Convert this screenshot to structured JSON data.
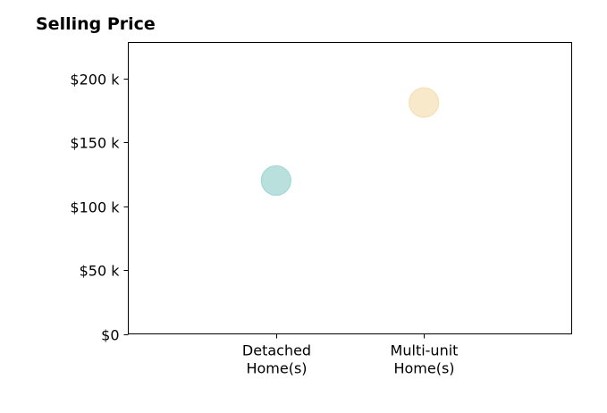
{
  "chart_data": {
    "type": "scatter",
    "title": "Selling Price",
    "xlabel": "",
    "ylabel": "",
    "categories": [
      [
        "Detached",
        "Home(s)"
      ],
      [
        "Multi-unit",
        "Home(s)"
      ]
    ],
    "x": [
      1,
      2
    ],
    "y": [
      120000,
      181000
    ],
    "point_colors": [
      "#a9d9d6",
      "#f7e4bd"
    ],
    "point_edge_colors": [
      "#8ccfcb",
      "#f1d9a6"
    ],
    "xlim": [
      0,
      3
    ],
    "ylim": [
      0,
      228000
    ],
    "yticks": [
      0,
      50000,
      100000,
      150000,
      200000
    ],
    "ytick_labels": [
      "$0",
      "$50 k",
      "$100 k",
      "$150 k",
      "$200 k"
    ],
    "grid": false,
    "legend": "none"
  }
}
